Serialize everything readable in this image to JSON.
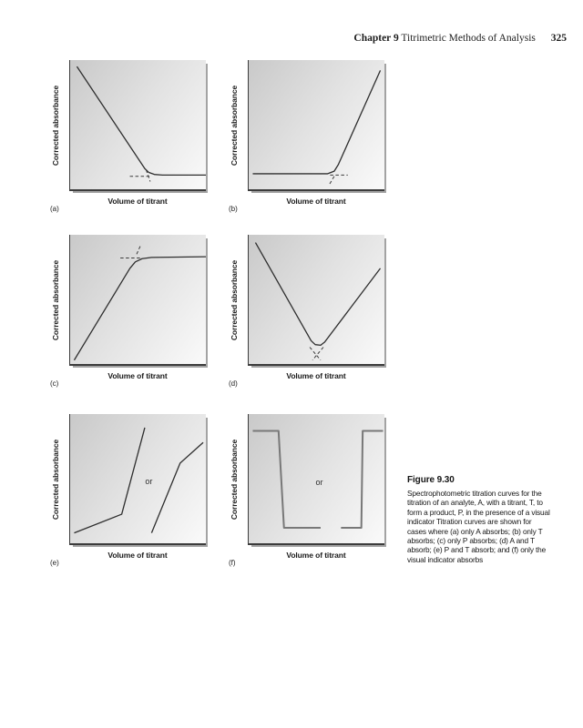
{
  "header": {
    "chapter_label": "Chapter 9",
    "chapter_title": "Titrimetric Methods of Analysis",
    "page_number": "325"
  },
  "axis_labels": {
    "x": "Volume of titrant",
    "y": "Corrected absorbance"
  },
  "figure_caption": {
    "title": "Figure 9.30",
    "lines": [
      "Spectrophotometric titration curves for the",
      "titration of an analyte, A, with a titrant, T, to",
      "form a product, P, in the presence of a visual",
      "indicator  Titration curves are shown for",
      "cases where (a) only A absorbs; (b) only T",
      "absorbs; (c) only P absorbs; (d) A and T",
      "absorb; (e) P and T absorb; and (f) only the",
      "visual indicator absorbs"
    ]
  },
  "colors": {
    "curve": "#2e2e2e",
    "dashed_guide": "#3a3a3a",
    "indicator_curve": "#787878",
    "axis": "#3c3c3c",
    "plot_shadow": "#a3a3a3",
    "plot_gradient_start": "#c9c9c9",
    "plot_gradient_end": "#fafafa"
  },
  "chart_data": [
    {
      "panel": "(a)",
      "case": "only A absorbs",
      "type": "line",
      "xlabel": "Volume of titrant",
      "ylabel": "Corrected absorbance",
      "x_range": [
        0,
        100
      ],
      "y_range": [
        0,
        100
      ],
      "series": [
        {
          "name": "titration-curve",
          "points": [
            [
              5,
              95
            ],
            [
              55,
              16
            ],
            [
              58,
              13
            ],
            [
              62,
              11.5
            ],
            [
              68,
              11
            ],
            [
              100,
              11
            ]
          ]
        }
      ],
      "dashed_guides": [
        {
          "name": "flat-segment-extrapolation",
          "points": [
            [
              44,
              10
            ],
            [
              59,
              10
            ]
          ]
        },
        {
          "name": "slope-segment-extrapolation",
          "points": [
            [
              56,
              15
            ],
            [
              59,
              6
            ]
          ]
        }
      ]
    },
    {
      "panel": "(b)",
      "case": "only T absorbs",
      "type": "line",
      "xlabel": "Volume of titrant",
      "ylabel": "Corrected absorbance",
      "x_range": [
        0,
        100
      ],
      "y_range": [
        0,
        100
      ],
      "series": [
        {
          "name": "titration-curve",
          "points": [
            [
              3,
              12
            ],
            [
              58,
              12
            ],
            [
              63,
              14
            ],
            [
              66,
              19
            ],
            [
              97,
              92
            ]
          ]
        }
      ],
      "dashed_guides": [
        {
          "name": "flat-segment-extrapolation",
          "points": [
            [
              60,
              11
            ],
            [
              73,
              11
            ]
          ]
        },
        {
          "name": "slope-segment-extrapolation",
          "points": [
            [
              63,
              10
            ],
            [
              59,
              3
            ]
          ]
        }
      ]
    },
    {
      "panel": "(c)",
      "case": "only P absorbs",
      "type": "line",
      "xlabel": "Volume of titrant",
      "ylabel": "Corrected absorbance",
      "x_range": [
        0,
        100
      ],
      "y_range": [
        0,
        100
      ],
      "series": [
        {
          "name": "titration-curve",
          "points": [
            [
              3,
              3
            ],
            [
              44,
              74
            ],
            [
              48,
              79
            ],
            [
              53,
              81.5
            ],
            [
              60,
              82.5
            ],
            [
              100,
              83
            ]
          ]
        }
      ],
      "dashed_guides": [
        {
          "name": "flat-segment-extrapolation",
          "points": [
            [
              37,
              82
            ],
            [
              53,
              82
            ]
          ]
        },
        {
          "name": "slope-segment-extrapolation",
          "points": [
            [
              49,
              85
            ],
            [
              52,
              92
            ]
          ]
        }
      ]
    },
    {
      "panel": "(d)",
      "case": "A and T absorb",
      "type": "line",
      "xlabel": "Volume of titrant",
      "ylabel": "Corrected absorbance",
      "x_range": [
        0,
        100
      ],
      "y_range": [
        0,
        100
      ],
      "series": [
        {
          "name": "titration-curve",
          "points": [
            [
              5,
              94
            ],
            [
              46,
              18
            ],
            [
              49,
              15
            ],
            [
              53,
              14.5
            ],
            [
              56,
              17
            ],
            [
              97,
              74
            ]
          ]
        }
      ],
      "dashed_guides": [
        {
          "name": "descending-extrapolation",
          "points": [
            [
              45,
              13
            ],
            [
              53,
              3
            ]
          ]
        },
        {
          "name": "ascending-extrapolation",
          "points": [
            [
              55,
              13
            ],
            [
              47,
              3
            ]
          ]
        }
      ]
    },
    {
      "panel": "(e)",
      "case": "P and T absorb",
      "type": "line",
      "annotation": "or",
      "annotation_pos": {
        "x": 58,
        "y": 52
      },
      "xlabel": "Volume of titrant",
      "ylabel": "Corrected absorbance",
      "x_range": [
        0,
        100
      ],
      "y_range": [
        0,
        100
      ],
      "series": [
        {
          "name": "curve-option-1",
          "points": [
            [
              3,
              8
            ],
            [
              38,
              22.5
            ],
            [
              55,
              89.5
            ]
          ]
        },
        {
          "name": "curve-option-2",
          "points": [
            [
              60,
              8
            ],
            [
              81,
              62
            ],
            [
              98,
              78
            ]
          ]
        }
      ],
      "dashed_guides": []
    },
    {
      "panel": "(f)",
      "case": "only the visual indicator absorbs",
      "type": "line",
      "annotation": "or",
      "annotation_pos": {
        "x": 52,
        "y": 53
      },
      "line_width": 2,
      "color_key": "indicator_curve",
      "xlabel": "Volume of titrant",
      "ylabel": "Corrected absorbance",
      "x_range": [
        0,
        100
      ],
      "y_range": [
        0,
        100
      ],
      "series": [
        {
          "name": "curve-option-1",
          "points": [
            [
              3,
              87
            ],
            [
              22,
              87
            ],
            [
              26,
              12
            ],
            [
              53,
              12
            ]
          ]
        },
        {
          "name": "curve-option-2",
          "points": [
            [
              68,
              12
            ],
            [
              83,
              12
            ],
            [
              84,
              87
            ],
            [
              99,
              87
            ]
          ]
        }
      ],
      "dashed_guides": []
    }
  ]
}
